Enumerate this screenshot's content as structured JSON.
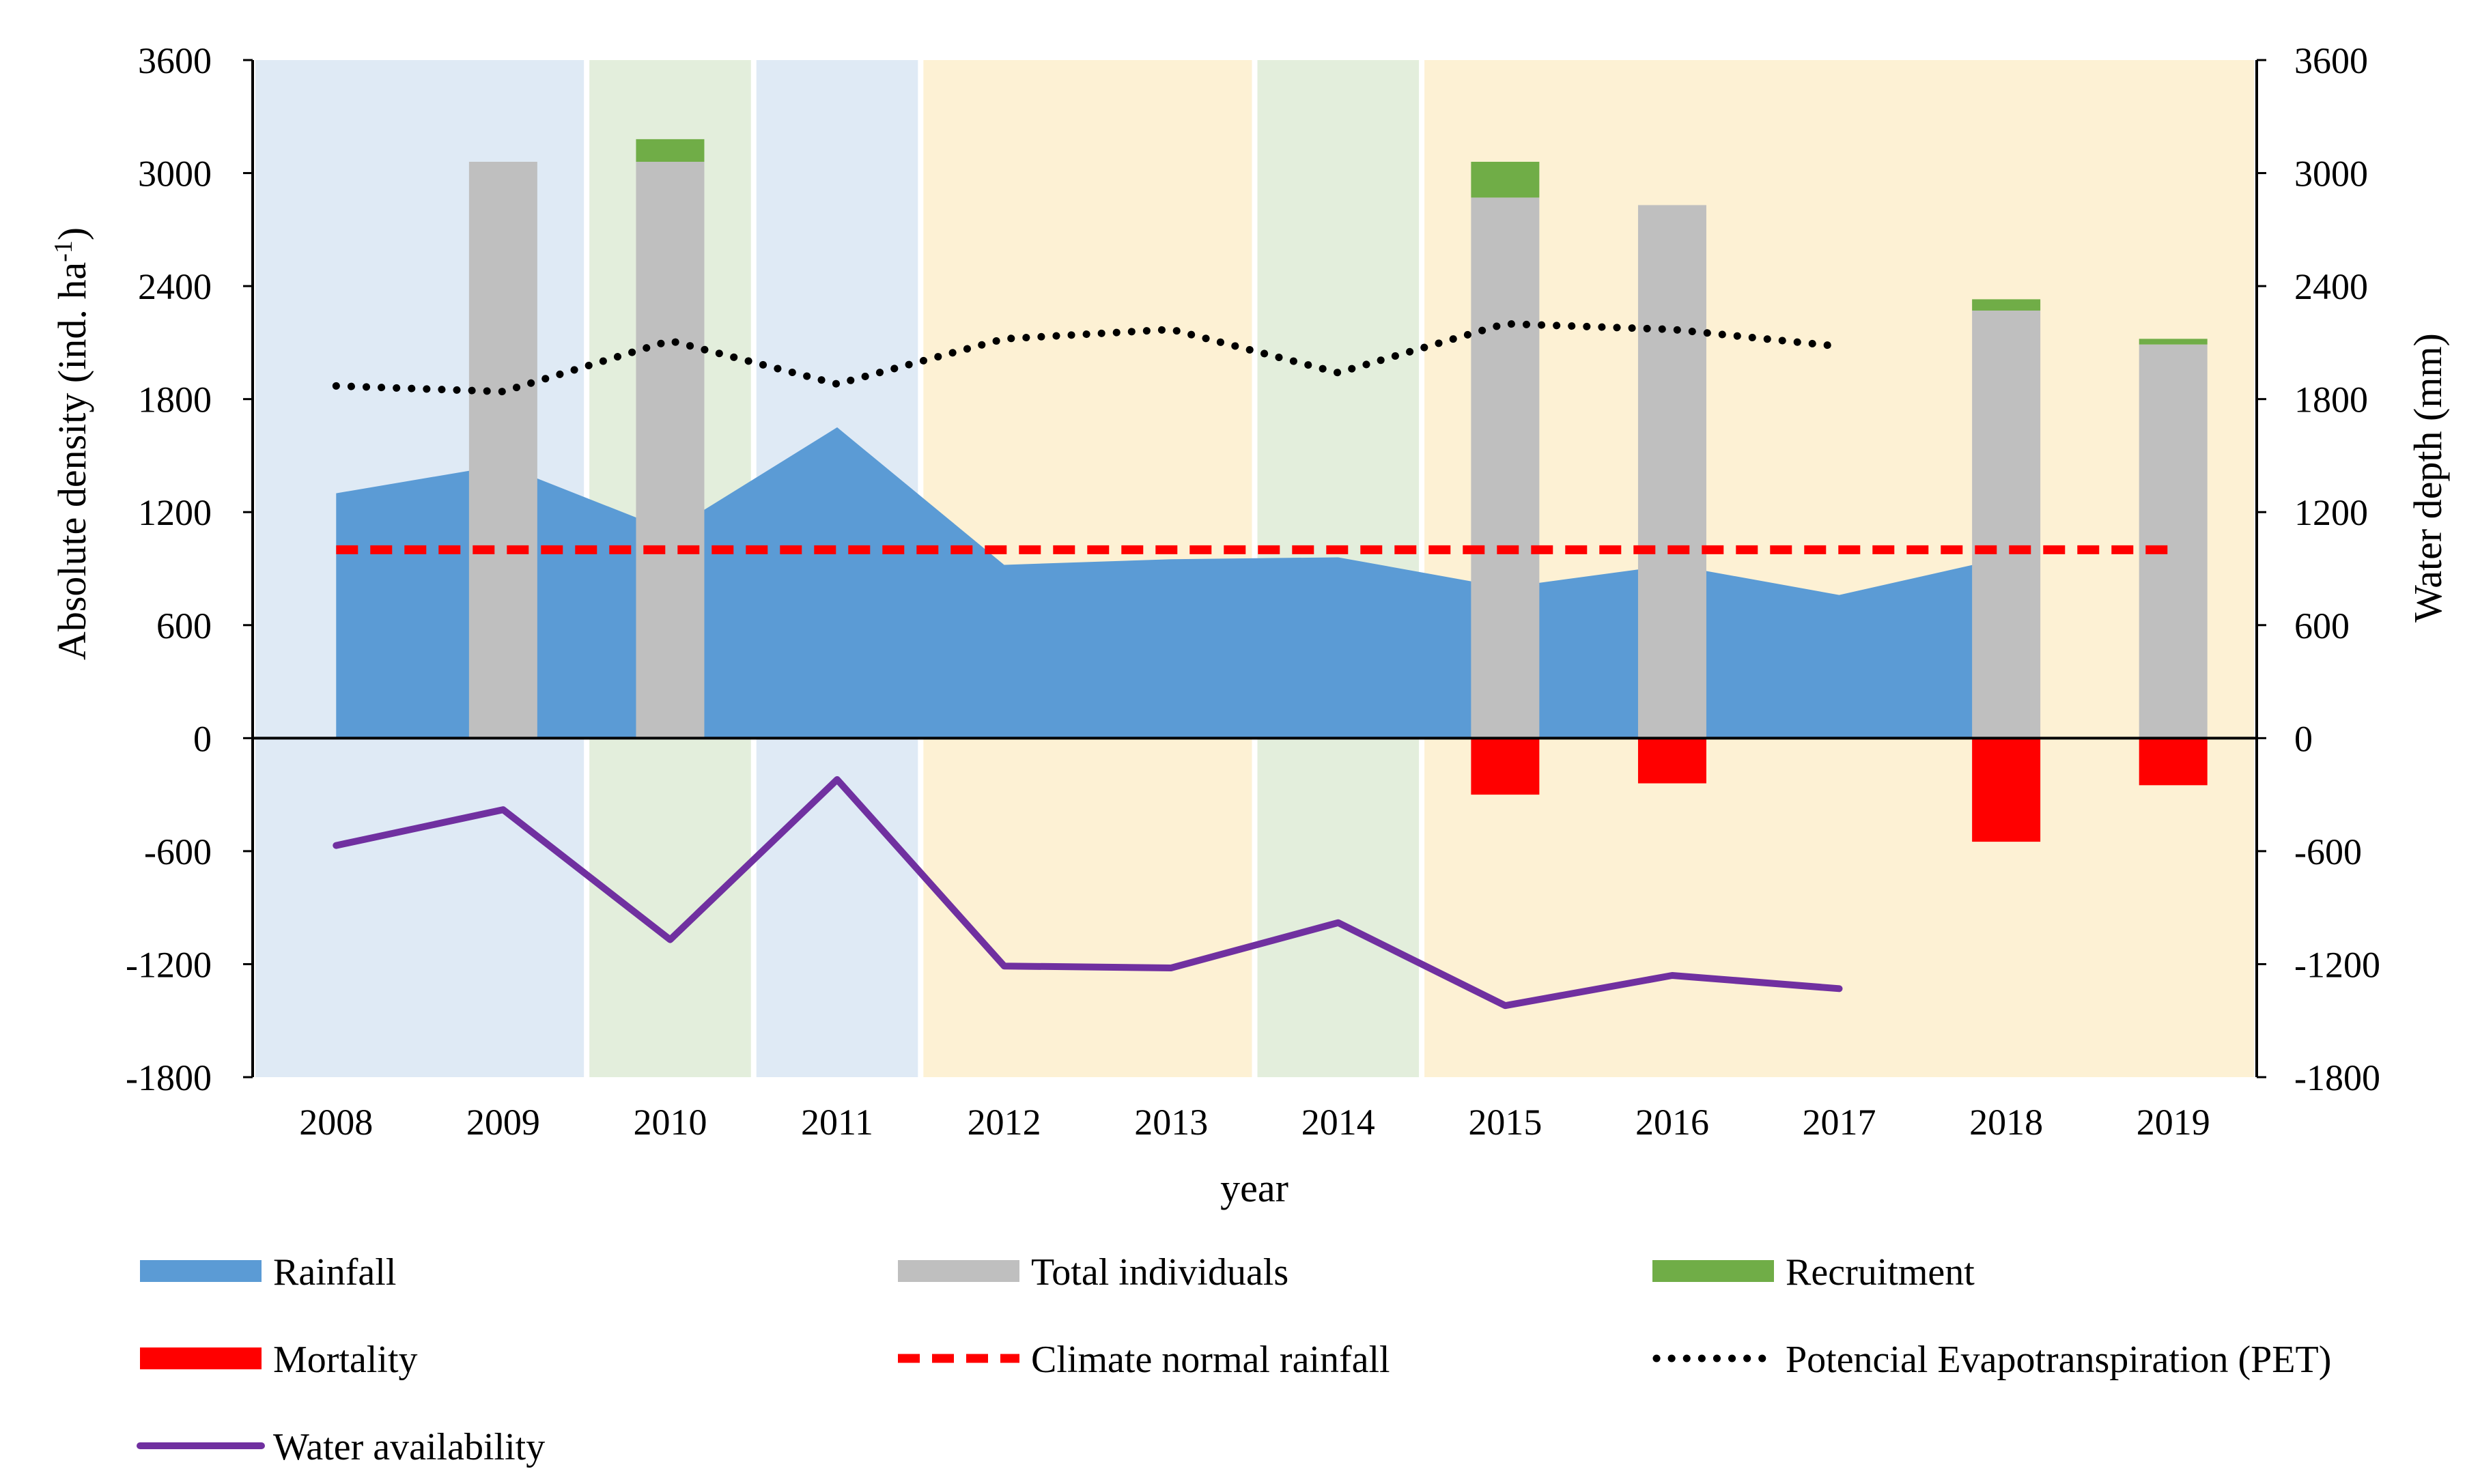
{
  "chart_data": {
    "type": "bar",
    "x": [
      "2008",
      "2009",
      "2010",
      "2011",
      "2012",
      "2013",
      "2014",
      "2015",
      "2016",
      "2017",
      "2018",
      "2019"
    ],
    "xlabel": "year",
    "ylabel_left": "Absolute density (ind. ha-1)",
    "ylabel_left_main": "Absolute density (ind. ha",
    "ylabel_left_sup": "-1",
    "ylabel_left_end": ")",
    "ylabel_right": "Water depth (mm)",
    "ylim": [
      -1800,
      3600
    ],
    "yticks": [
      -1800,
      -1200,
      -600,
      0,
      600,
      1200,
      1800,
      2400,
      3000,
      3600
    ],
    "background_bands": [
      {
        "from": "2008",
        "to": "2009",
        "color": "#dfeaf5"
      },
      {
        "from": "2010",
        "to": "2010",
        "color": "#e3eedc"
      },
      {
        "from": "2011",
        "to": "2011",
        "color": "#dfeaf5"
      },
      {
        "from": "2012",
        "to": "2013",
        "color": "#fdf1d4"
      },
      {
        "from": "2014",
        "to": "2014",
        "color": "#e3eedc"
      },
      {
        "from": "2015",
        "to": "2019",
        "color": "#fdf1d4"
      }
    ],
    "series": [
      {
        "name": "Rainfall",
        "type": "area",
        "axis": "right",
        "color": "#5b9bd5",
        "values": [
          1300,
          1450,
          1100,
          1650,
          920,
          950,
          960,
          800,
          920,
          760,
          960,
          null
        ]
      },
      {
        "name": "Total individuals",
        "type": "bar",
        "axis": "left",
        "color": "#bfbfbf",
        "values": [
          null,
          3060,
          3060,
          null,
          null,
          null,
          null,
          2870,
          2830,
          null,
          2270,
          2090
        ]
      },
      {
        "name": "Recruitment",
        "type": "bar-stacked",
        "axis": "left",
        "color": "#70ad47",
        "values": [
          null,
          null,
          120,
          null,
          null,
          null,
          null,
          190,
          null,
          null,
          60,
          30
        ]
      },
      {
        "name": "Mortality",
        "type": "bar",
        "axis": "left",
        "color": "#ff0000",
        "values": [
          null,
          null,
          null,
          null,
          null,
          null,
          null,
          -300,
          -240,
          null,
          -550,
          -250
        ]
      },
      {
        "name": "Climate normal rainfall",
        "type": "line",
        "style": "dashed",
        "axis": "right",
        "color": "#ff0000",
        "values": [
          1000,
          1000,
          1000,
          1000,
          1000,
          1000,
          1000,
          1000,
          1000,
          1000,
          1000,
          1000
        ]
      },
      {
        "name": "Potencial Evapotranspiration (PET)",
        "type": "line",
        "style": "dotted",
        "axis": "right",
        "color": "#000000",
        "values": [
          1870,
          1840,
          2110,
          1880,
          2120,
          2170,
          1940,
          2200,
          2170,
          2080,
          null,
          null
        ]
      },
      {
        "name": "Water availability",
        "type": "line",
        "style": "solid",
        "axis": "right",
        "color": "#7030a0",
        "values": [
          -570,
          -380,
          -1070,
          -220,
          -1210,
          -1220,
          -980,
          -1420,
          -1260,
          -1330,
          null,
          null
        ]
      }
    ],
    "legend": [
      {
        "label": "Rainfall",
        "symbol": "rect",
        "color": "#5b9bd5"
      },
      {
        "label": "Total individuals",
        "symbol": "rect",
        "color": "#bfbfbf"
      },
      {
        "label": "Recruitment",
        "symbol": "rect",
        "color": "#70ad47"
      },
      {
        "label": "Mortality",
        "symbol": "rect",
        "color": "#ff0000"
      },
      {
        "label": "Climate normal rainfall",
        "symbol": "dashed",
        "color": "#ff0000"
      },
      {
        "label": "Potencial Evapotranspiration (PET)",
        "symbol": "dotted",
        "color": "#000000"
      },
      {
        "label": "Water availability",
        "symbol": "line",
        "color": "#7030a0"
      }
    ],
    "legend_position": "bottom",
    "grid": false
  }
}
